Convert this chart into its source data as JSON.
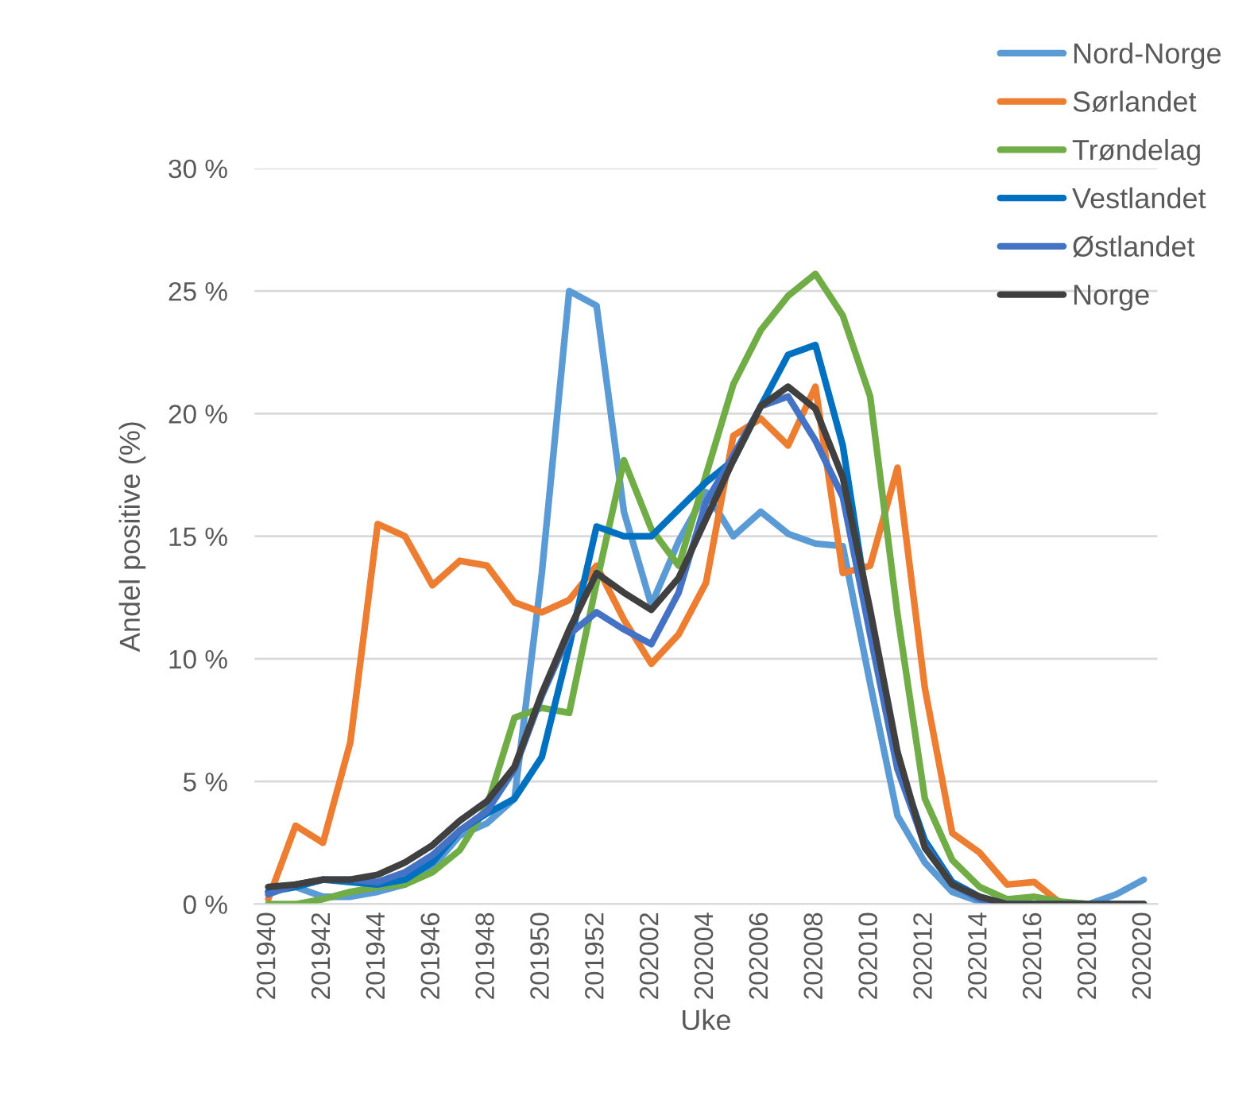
{
  "chart_data": {
    "type": "line",
    "xlabel": "Uke",
    "ylabel": "Andel positive (%)",
    "categories": [
      "201940",
      null,
      "201942",
      null,
      "201944",
      null,
      "201946",
      null,
      "201948",
      null,
      "201950",
      null,
      "201952",
      null,
      "202002",
      null,
      "202004",
      null,
      "202006",
      null,
      "202008",
      null,
      "202010",
      null,
      "202012",
      null,
      "202014",
      null,
      "202016",
      null,
      "202018",
      null,
      "202020"
    ],
    "series": [
      {
        "name": "Nord-Norge",
        "color": "#5b9bd5",
        "values": [
          0.5,
          0.7,
          0.3,
          0.3,
          0.5,
          0.8,
          1.5,
          2.8,
          3.3,
          4.3,
          13.5,
          25.0,
          24.4,
          16.0,
          12.2,
          14.8,
          16.8,
          15.0,
          16.0,
          15.1,
          14.7,
          14.6,
          9.0,
          3.6,
          1.7,
          0.5,
          0.1,
          0,
          0,
          0,
          0,
          0.4,
          1.0
        ]
      },
      {
        "name": "Sørlandet",
        "color": "#ed7d31",
        "values": [
          0.2,
          3.2,
          2.5,
          6.6,
          15.5,
          15.0,
          13.0,
          14.0,
          13.8,
          12.3,
          11.9,
          12.4,
          13.8,
          11.6,
          9.8,
          11.0,
          13.1,
          19.1,
          19.8,
          18.7,
          21.1,
          13.5,
          13.8,
          17.8,
          8.8,
          2.9,
          2.1,
          0.8,
          0.9,
          0,
          0,
          null,
          null
        ]
      },
      {
        "name": "Trøndelag",
        "color": "#70ad47",
        "values": [
          0,
          0,
          0.2,
          0.5,
          0.7,
          0.8,
          1.3,
          2.2,
          4.0,
          7.6,
          8.0,
          7.8,
          13.1,
          18.1,
          15.3,
          13.8,
          17.5,
          21.2,
          23.4,
          24.8,
          25.7,
          24.0,
          20.7,
          11.8,
          4.3,
          1.8,
          0.7,
          0.2,
          0.3,
          0.1,
          0,
          0,
          0
        ]
      },
      {
        "name": "Vestlandet",
        "color": "#0070c0",
        "values": [
          0.5,
          0.7,
          1.0,
          0.9,
          0.8,
          1.0,
          1.7,
          3.0,
          3.7,
          4.3,
          6.0,
          10.5,
          15.4,
          15.0,
          15.0,
          16.1,
          17.2,
          18.1,
          20.3,
          22.4,
          22.8,
          18.7,
          11.5,
          5.8,
          2.6,
          0.9,
          0.3,
          0,
          0,
          0,
          0,
          0,
          0
        ]
      },
      {
        "name": "Østlandet",
        "color": "#4472c4",
        "values": [
          0.4,
          0.8,
          1.0,
          1.0,
          0.9,
          1.3,
          2.0,
          3.0,
          3.8,
          5.5,
          8.5,
          11.0,
          11.9,
          11.2,
          10.6,
          12.7,
          16.4,
          18.3,
          20.3,
          20.7,
          18.9,
          16.6,
          11.0,
          5.5,
          2.4,
          0.8,
          0.2,
          0,
          0,
          0,
          0,
          0,
          0
        ]
      },
      {
        "name": "Norge",
        "color": "#404040",
        "values": [
          0.7,
          0.8,
          1.0,
          1.0,
          1.2,
          1.7,
          2.4,
          3.4,
          4.2,
          5.6,
          8.6,
          11.2,
          13.5,
          12.7,
          12.0,
          13.3,
          15.7,
          18.1,
          20.3,
          21.1,
          20.2,
          17.4,
          12.0,
          6.2,
          2.3,
          0.8,
          0.3,
          0,
          0,
          0,
          0,
          0,
          0
        ]
      }
    ],
    "ylim": [
      0,
      30
    ],
    "yticks": [
      {
        "value": 0,
        "label": "0 %"
      },
      {
        "value": 5,
        "label": "5 %"
      },
      {
        "value": 10,
        "label": "10 %"
      },
      {
        "value": 15,
        "label": "15 %"
      },
      {
        "value": 20,
        "label": "20 %"
      },
      {
        "value": 25,
        "label": "25 %"
      },
      {
        "value": 30,
        "label": "30 %"
      }
    ],
    "grid": "y",
    "legend": "top right",
    "marker": "none",
    "line_style": "solid"
  }
}
